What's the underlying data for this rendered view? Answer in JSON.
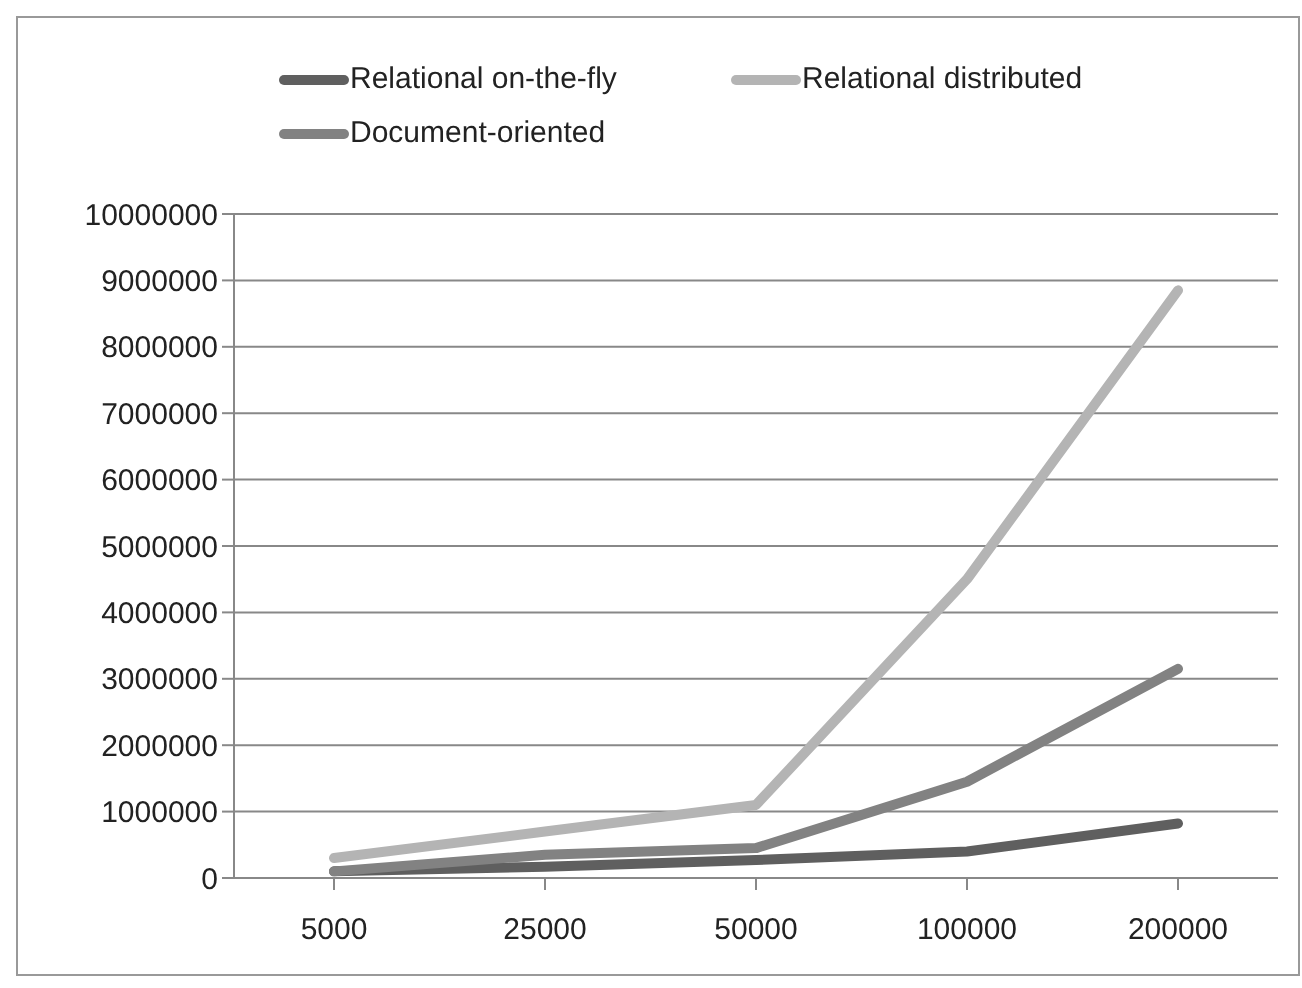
{
  "chart_data": {
    "type": "line",
    "categories": [
      "5000",
      "25000",
      "50000",
      "100000",
      "200000"
    ],
    "series": [
      {
        "name": "Relational on-the-fly",
        "color": "#5f5f5f",
        "values": [
          100000,
          170000,
          270000,
          400000,
          820000
        ]
      },
      {
        "name": "Relational distributed",
        "color": "#b4b4b4",
        "values": [
          300000,
          700000,
          1100000,
          4500000,
          8850000
        ]
      },
      {
        "name": "Document-oriented",
        "color": "#828282",
        "values": [
          100000,
          350000,
          450000,
          1450000,
          3150000
        ]
      }
    ],
    "ylim": [
      0,
      10000000
    ],
    "yticks": [
      0,
      1000000,
      2000000,
      3000000,
      4000000,
      5000000,
      6000000,
      7000000,
      8000000,
      9000000,
      10000000
    ],
    "grid": "y",
    "legend": "top",
    "marker": "none",
    "line_style": "solid"
  }
}
